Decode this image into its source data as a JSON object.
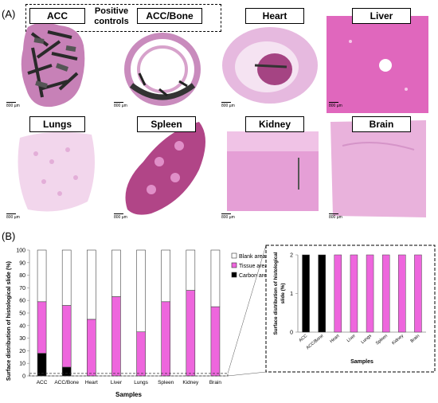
{
  "panel_a": {
    "letter": "(A)",
    "positive_controls": [
      "Positive",
      "controls"
    ],
    "scale_text": "800 µm",
    "tiles": [
      "ACC",
      "ACC/Bone",
      "Heart",
      "Liver",
      "Lungs",
      "Spleen",
      "Kidney",
      "Brain"
    ]
  },
  "panel_b": {
    "letter": "(B)"
  },
  "colors": {
    "blank": "#ffffff",
    "tissue": "#ee66dd",
    "carbon": "#000000",
    "he_pink": "#d88ec8"
  },
  "chart_data": [
    {
      "type": "bar",
      "stacked": true,
      "categories": [
        "ACC",
        "ACC/Bone",
        "Heart",
        "Liver",
        "Lungs",
        "Spleen",
        "Kidney",
        "Brain"
      ],
      "series": [
        {
          "name": "Carbon area",
          "values": [
            18,
            7,
            0,
            0,
            0,
            0,
            0,
            0
          ]
        },
        {
          "name": "Tissue area",
          "values": [
            41,
            49,
            45,
            63,
            35,
            59,
            68,
            55
          ]
        },
        {
          "name": "Blank area",
          "values": [
            41,
            44,
            55,
            37,
            65,
            41,
            32,
            45
          ]
        }
      ],
      "xlabel": "Samples",
      "ylabel": "Surface distribution of histological slide  (%)",
      "ylim": [
        0,
        100
      ],
      "yticks": [
        "0",
        "10",
        "20",
        "30",
        "40",
        "50",
        "60",
        "70",
        "80",
        "90",
        "100"
      ],
      "legend": "top-right"
    },
    {
      "type": "bar",
      "categories": [
        "ACC",
        "ACC/Bone",
        "Heart",
        "Liver",
        "Lungs",
        "Spleen",
        "Kidney",
        "Brain"
      ],
      "values": [
        2,
        2,
        2,
        2,
        2,
        2,
        2,
        2
      ],
      "fills": [
        "carbon",
        "carbon",
        "tissue",
        "tissue",
        "tissue",
        "tissue",
        "tissue",
        "tissue"
      ],
      "xlabel": "Samples",
      "ylabel": [
        "Surface distribution of histological",
        "slide  (%)"
      ],
      "ylim": [
        0,
        2
      ],
      "yticks": [
        "0",
        "1",
        "2"
      ]
    }
  ]
}
